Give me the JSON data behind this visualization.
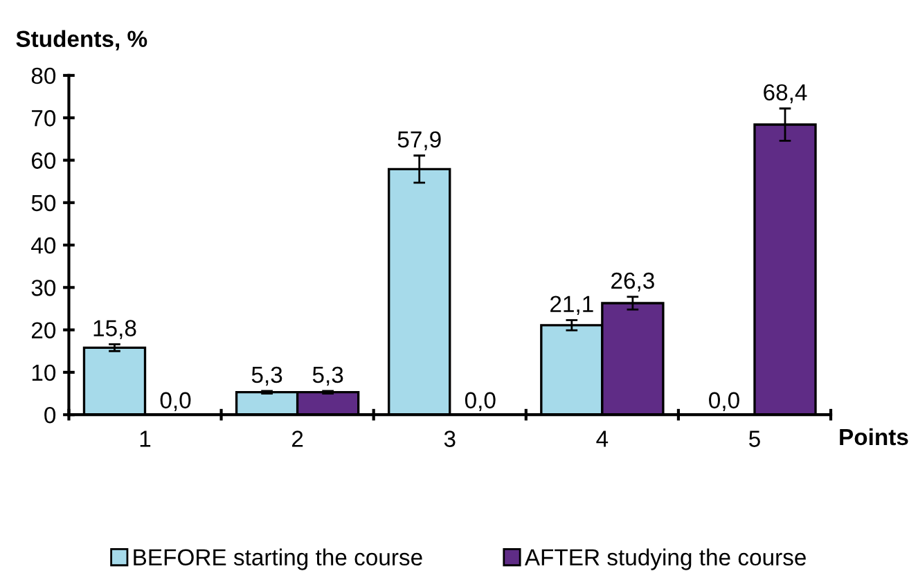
{
  "chart_data": {
    "type": "bar",
    "ylabel": "Students, %",
    "xlabel": "Points",
    "categories": [
      "1",
      "2",
      "3",
      "4",
      "5"
    ],
    "series": [
      {
        "name": "BEFORE starting the course",
        "color": "#a6daea",
        "values": [
          15.8,
          5.3,
          57.9,
          21.1,
          0.0
        ],
        "errors": [
          0.8,
          0.3,
          3.2,
          1.2,
          null
        ],
        "value_labels": [
          "15,8",
          "5,3",
          "57,9",
          "21,1",
          "0,0"
        ]
      },
      {
        "name": "AFTER studying the course",
        "color": "#5f2c86",
        "values": [
          0.0,
          5.3,
          0.0,
          26.3,
          68.4
        ],
        "errors": [
          null,
          0.3,
          null,
          1.5,
          3.8
        ],
        "value_labels": [
          "0,0",
          "5,3",
          "0,0",
          "26,3",
          "68,4"
        ]
      }
    ],
    "ylim": [
      0,
      80
    ],
    "yticks": [
      0,
      10,
      20,
      30,
      40,
      50,
      60,
      70,
      80
    ],
    "grid": false,
    "legend": "bottom"
  }
}
